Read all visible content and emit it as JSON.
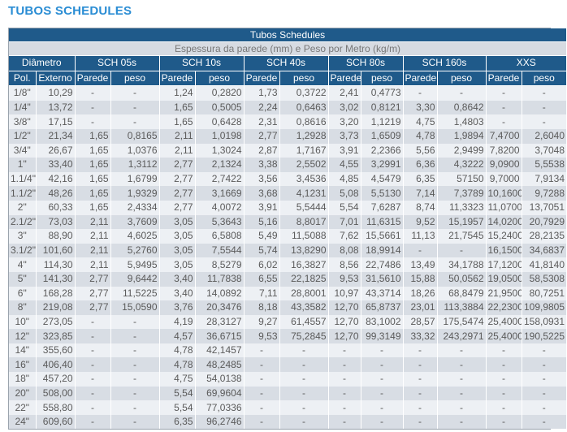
{
  "page_title": "TUBOS SCHEDULES",
  "table": {
    "title": "Tubos Schedules",
    "subtitle": "Espessura da parede (mm) e Peso por Metro (kg/m)",
    "group_headers": [
      "Diâmetro",
      "SCH 05s",
      "SCH 10s",
      "SCH 40s",
      "SCH 80s",
      "SCH 160s",
      "XXS"
    ],
    "column_headers": [
      "Pol.",
      "Externo",
      "Parede",
      "peso",
      "Parede",
      "peso",
      "Parede",
      "peso",
      "Parede",
      "peso",
      "Parede",
      "peso",
      "Parede",
      "peso"
    ],
    "rows": [
      [
        "1/8\"",
        "10,29",
        "-",
        "-",
        "1,24",
        "0,2820",
        "1,73",
        "0,3722",
        "2,41",
        "0,4773",
        "-",
        "-",
        "-",
        "-"
      ],
      [
        "1/4\"",
        "13,72",
        "-",
        "-",
        "1,65",
        "0,5005",
        "2,24",
        "0,6463",
        "3,02",
        "0,8121",
        "3,30",
        "0,8642",
        "-",
        "-"
      ],
      [
        "3/8\"",
        "17,15",
        "-",
        "-",
        "1,65",
        "0,6428",
        "2,31",
        "0,8616",
        "3,20",
        "1,1219",
        "4,75",
        "1,4803",
        "-",
        "-"
      ],
      [
        "1/2\"",
        "21,34",
        "1,65",
        "0,8165",
        "2,11",
        "1,0198",
        "2,77",
        "1,2928",
        "3,73",
        "1,6509",
        "4,78",
        "1,9894",
        "7,4700",
        "2,6040"
      ],
      [
        "3/4\"",
        "26,67",
        "1,65",
        "1,0376",
        "2,11",
        "1,3024",
        "2,87",
        "1,7167",
        "3,91",
        "2,2366",
        "5,56",
        "2,9499",
        "7,8200",
        "3,7048"
      ],
      [
        "1\"",
        "33,40",
        "1,65",
        "1,3112",
        "2,77",
        "2,1324",
        "3,38",
        "2,5502",
        "4,55",
        "3,2991",
        "6,36",
        "4,3222",
        "9,0900",
        "5,5538"
      ],
      [
        "1.1/4\"",
        "42,16",
        "1,65",
        "1,6799",
        "2,77",
        "2,7422",
        "3,56",
        "3,4536",
        "4,85",
        "4,5479",
        "6,35",
        "57150",
        "9,7000",
        "7,9134"
      ],
      [
        "1.1/2\"",
        "48,26",
        "1,65",
        "1,9329",
        "2,77",
        "3,1669",
        "3,68",
        "4,1231",
        "5,08",
        "5,5130",
        "7,14",
        "7,3789",
        "10,1600",
        "9,7288"
      ],
      [
        "2\"",
        "60,33",
        "1,65",
        "2,4334",
        "2,77",
        "4,0072",
        "3,91",
        "5,5444",
        "5,54",
        "7,6287",
        "8,74",
        "11,3323",
        "11,0700",
        "13,7051"
      ],
      [
        "2.1/2\"",
        "73,03",
        "2,11",
        "3,7609",
        "3,05",
        "5,3643",
        "5,16",
        "8,8017",
        "7,01",
        "11,6315",
        "9,52",
        "15,1957",
        "14,0200",
        "20,7929"
      ],
      [
        "3\"",
        "88,90",
        "2,11",
        "4,6025",
        "3,05",
        "6,5808",
        "5,49",
        "11,5088",
        "7,62",
        "15,5661",
        "11,13",
        "21,7545",
        "15,2400",
        "28,2135"
      ],
      [
        "3.1/2\"",
        "101,60",
        "2,11",
        "5,2760",
        "3,05",
        "7,5544",
        "5,74",
        "13,8290",
        "8,08",
        "18,9914",
        "-",
        "-",
        "16,1500",
        "34,6837"
      ],
      [
        "4\"",
        "114,30",
        "2,11",
        "5,9495",
        "3,05",
        "8,5279",
        "6,02",
        "16,3827",
        "8,56",
        "22,7486",
        "13,49",
        "34,1788",
        "17,1200",
        "41,8140"
      ],
      [
        "5\"",
        "141,30",
        "2,77",
        "9,6442",
        "3,40",
        "11,7838",
        "6,55",
        "22,1825",
        "9,53",
        "31,5610",
        "15,88",
        "50,0562",
        "19,0500",
        "58,5308"
      ],
      [
        "6\"",
        "168,28",
        "2,77",
        "11,5225",
        "3,40",
        "14,0892",
        "7,11",
        "28,8001",
        "10,97",
        "43,3714",
        "18,26",
        "68,8479",
        "21,9500",
        "80,7251"
      ],
      [
        "8\"",
        "219,08",
        "2,77",
        "15,0590",
        "3,76",
        "20,3476",
        "8,18",
        "43,3582",
        "12,70",
        "65,8737",
        "23,01",
        "113,3884",
        "22,2300",
        "109,9805"
      ],
      [
        "10\"",
        "273,05",
        "-",
        "-",
        "4,19",
        "28,3127",
        "9,27",
        "61,4557",
        "12,70",
        "83,1002",
        "28,57",
        "175,5474",
        "25,4000",
        "158,0931"
      ],
      [
        "12\"",
        "323,85",
        "-",
        "-",
        "4,57",
        "36,6715",
        "9,53",
        "75,2845",
        "12,70",
        "99,3149",
        "33,32",
        "243,2971",
        "25,4000",
        "190,5225"
      ],
      [
        "14\"",
        "355,60",
        "-",
        "-",
        "4,78",
        "42,1457",
        "-",
        "-",
        "-",
        "-",
        "-",
        "-",
        "-",
        "-"
      ],
      [
        "16\"",
        "406,40",
        "-",
        "-",
        "4,78",
        "48,2485",
        "-",
        "-",
        "-",
        "-",
        "-",
        "-",
        "-",
        "-"
      ],
      [
        "18\"",
        "457,20",
        "-",
        "-",
        "4,75",
        "54,0138",
        "-",
        "-",
        "-",
        "-",
        "-",
        "-",
        "-",
        "-"
      ],
      [
        "20\"",
        "508,00",
        "-",
        "-",
        "5,54",
        "69,9604",
        "-",
        "-",
        "-",
        "-",
        "-",
        "-",
        "-",
        "-"
      ],
      [
        "22\"",
        "558,80",
        "-",
        "-",
        "5,54",
        "77,0336",
        "-",
        "-",
        "-",
        "-",
        "-",
        "-",
        "-",
        "-"
      ],
      [
        "24\"",
        "609,60",
        "-",
        "-",
        "6,35",
        "96,2746",
        "-",
        "-",
        "-",
        "-",
        "-",
        "-",
        "-",
        "-"
      ]
    ]
  },
  "colors": {
    "title_text": "#2a8dd4",
    "header_bg": "#1f5a8a",
    "subheader_bg": "#d6dbe2",
    "row_light": "#edf0f4",
    "row_dark": "#d8dde4"
  }
}
